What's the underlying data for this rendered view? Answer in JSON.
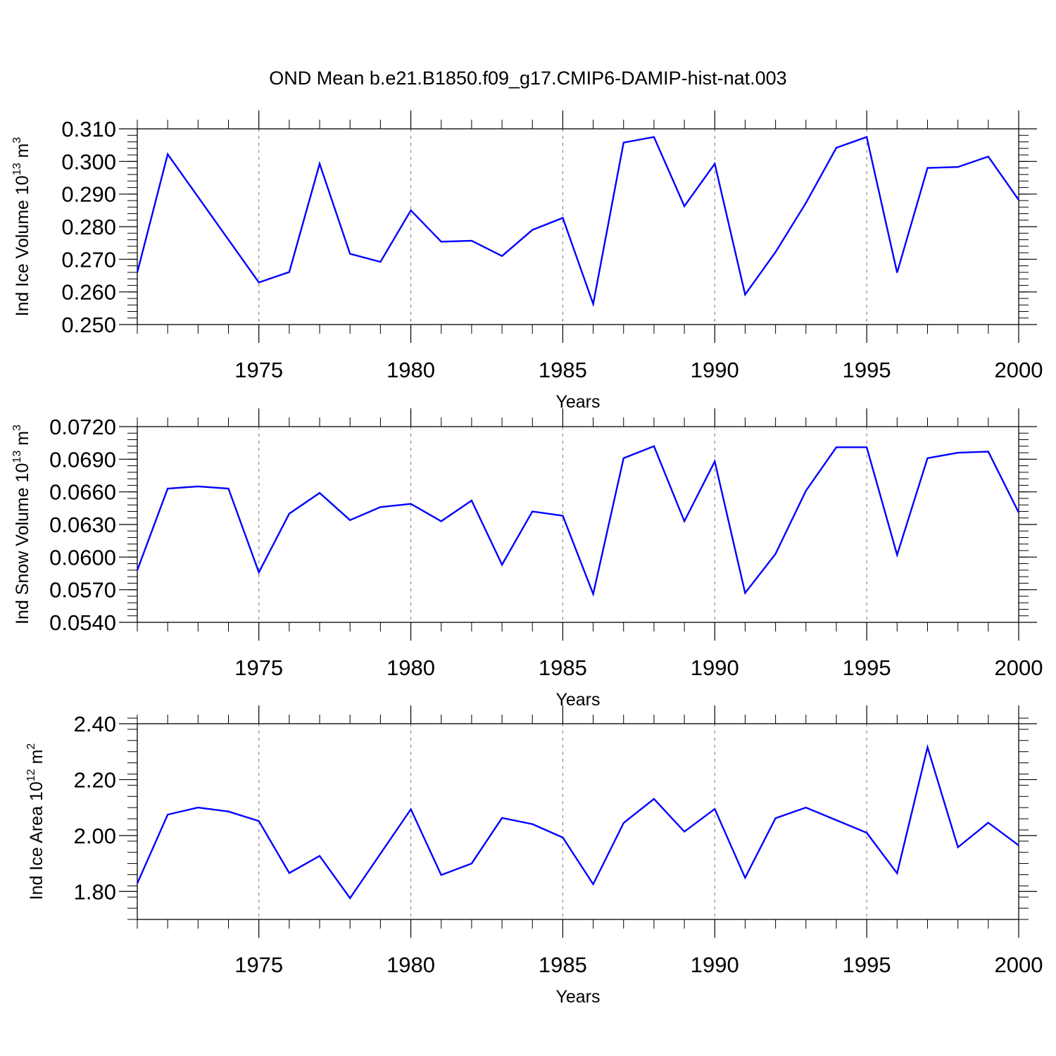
{
  "title": "OND Mean b.e21.B1850.f09_g17.CMIP6-DAMIP-hist-nat.003",
  "colors": {
    "series": "#0000ff",
    "grid": "#888888",
    "frame": "#000000"
  },
  "chart_data": [
    {
      "type": "line",
      "xlabel": "Years",
      "ylabel": {
        "text": "Ind Ice Volume 10",
        "sup": "13",
        "unit": " m",
        "unit_sup": "3"
      },
      "xlim": [
        1971,
        2000
      ],
      "ylim": [
        0.25,
        0.31
      ],
      "yticks": [
        0.25,
        0.26,
        0.27,
        0.28,
        0.29,
        0.3,
        0.31
      ],
      "ytick_labels": [
        "0.250",
        "0.260",
        "0.270",
        "0.280",
        "0.290",
        "0.300",
        "0.310"
      ],
      "xticks": [
        1975,
        1980,
        1985,
        1990,
        1995,
        2000
      ],
      "xtick_labels": [
        "1975",
        "1980",
        "1985",
        "1990",
        "1995",
        "2000"
      ],
      "grid": "vertical dashed at major x ticks",
      "x": [
        1971,
        1972,
        1975,
        1976,
        1977,
        1978,
        1979,
        1980,
        1981,
        1982,
        1983,
        1984,
        1985,
        1986,
        1987,
        1988,
        1989,
        1990,
        1991,
        1992,
        1993,
        1994,
        1995,
        1996,
        1997,
        1998,
        1999,
        2000
      ],
      "values": [
        0.266,
        0.3022,
        0.2629,
        0.2661,
        0.2993,
        0.2717,
        0.2692,
        0.285,
        0.2754,
        0.2757,
        0.271,
        0.279,
        0.2827,
        0.2563,
        0.3058,
        0.3075,
        0.2863,
        0.2993,
        0.2592,
        0.2722,
        0.2873,
        0.3042,
        0.3075,
        0.2659,
        0.298,
        0.2983,
        0.3015,
        0.2882
      ]
    },
    {
      "type": "line",
      "xlabel": "Years",
      "ylabel": {
        "text": "Ind Snow Volume 10",
        "sup": "13",
        "unit": " m",
        "unit_sup": "3"
      },
      "xlim": [
        1971,
        2000
      ],
      "ylim": [
        0.054,
        0.072
      ],
      "yticks": [
        0.054,
        0.057,
        0.06,
        0.063,
        0.066,
        0.069,
        0.072
      ],
      "ytick_labels": [
        "0.0540",
        "0.0570",
        "0.0600",
        "0.0630",
        "0.0660",
        "0.0690",
        "0.0720"
      ],
      "xticks": [
        1975,
        1980,
        1985,
        1990,
        1995,
        2000
      ],
      "xtick_labels": [
        "1975",
        "1980",
        "1985",
        "1990",
        "1995",
        "2000"
      ],
      "grid": "vertical dashed at major x ticks",
      "x": [
        1971,
        1972,
        1973,
        1974,
        1975,
        1976,
        1977,
        1978,
        1979,
        1980,
        1981,
        1982,
        1983,
        1984,
        1985,
        1986,
        1987,
        1988,
        1989,
        1990,
        1991,
        1992,
        1993,
        1994,
        1995,
        1996,
        1997,
        1998,
        1999,
        2000
      ],
      "values": [
        0.0588,
        0.0663,
        0.0665,
        0.0663,
        0.0586,
        0.064,
        0.0659,
        0.0634,
        0.0646,
        0.0649,
        0.0633,
        0.0652,
        0.0593,
        0.0642,
        0.0638,
        0.0566,
        0.0691,
        0.0702,
        0.0633,
        0.0688,
        0.0567,
        0.0603,
        0.0661,
        0.0701,
        0.0701,
        0.0602,
        0.0691,
        0.0696,
        0.0697,
        0.0641
      ]
    },
    {
      "type": "line",
      "xlabel": "Years",
      "ylabel": {
        "text": "Ind Ice Area 10",
        "sup": "12",
        "unit": " m",
        "unit_sup": "2"
      },
      "xlim": [
        1971,
        2000
      ],
      "ylim": [
        1.7,
        2.4
      ],
      "yticks": [
        1.8,
        2.0,
        2.2,
        2.4
      ],
      "ytick_labels": [
        "1.80",
        "2.00",
        "2.20",
        "2.40"
      ],
      "xticks": [
        1975,
        1980,
        1985,
        1990,
        1995,
        2000
      ],
      "xtick_labels": [
        "1975",
        "1980",
        "1985",
        "1990",
        "1995",
        "2000"
      ],
      "grid": "vertical dashed at major x ticks",
      "x": [
        1971,
        1972,
        1973,
        1974,
        1975,
        1976,
        1977,
        1978,
        1980,
        1981,
        1982,
        1983,
        1984,
        1985,
        1986,
        1987,
        1988,
        1989,
        1990,
        1991,
        1992,
        1993,
        1995,
        1996,
        1997,
        1998,
        1999,
        2000
      ],
      "values": [
        1.829,
        2.075,
        2.1,
        2.086,
        2.052,
        1.866,
        1.927,
        1.776,
        2.094,
        1.859,
        1.9,
        2.063,
        2.041,
        1.993,
        1.826,
        2.045,
        2.131,
        2.014,
        2.095,
        1.849,
        2.062,
        2.1,
        2.01,
        1.865,
        2.316,
        1.958,
        2.046,
        1.965
      ]
    }
  ]
}
